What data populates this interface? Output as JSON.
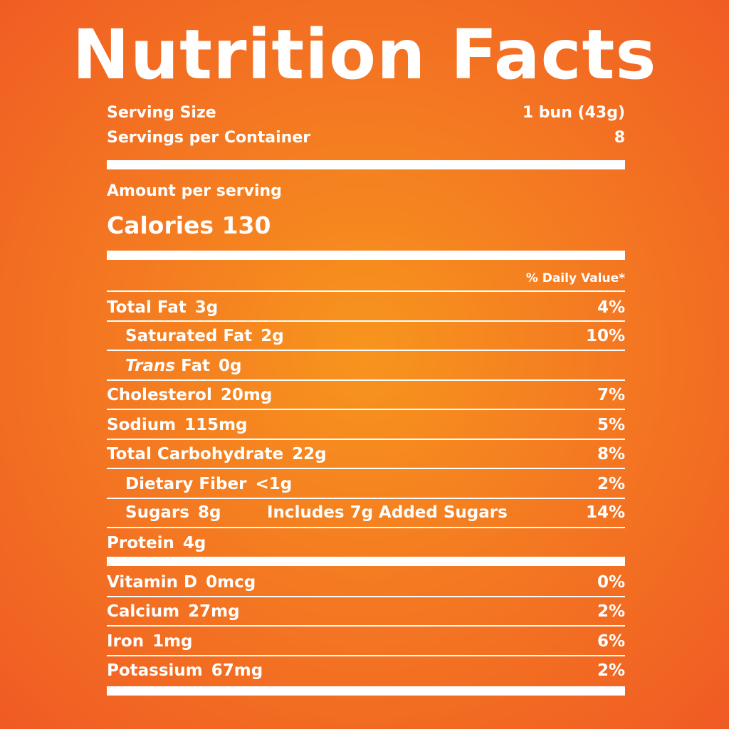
{
  "title": "Nutrition Facts",
  "serving": {
    "size_label": "Serving Size",
    "size_value": "1 bun (43g)",
    "per_container_label": "Servings per Container",
    "per_container_value": "8"
  },
  "amount_label": "Amount per serving",
  "calories": {
    "label": "Calories",
    "value": "130"
  },
  "daily_value_header": "% Daily Value*",
  "nutrients": {
    "total_fat": {
      "label": "Total Fat",
      "amount": "3g",
      "dv": "4%"
    },
    "saturated_fat": {
      "label": "Saturated Fat",
      "amount": "2g",
      "dv": "10%"
    },
    "trans_fat": {
      "label_italic": "Trans",
      "label": "Fat",
      "amount": "0g"
    },
    "cholesterol": {
      "label": "Cholesterol",
      "amount": "20mg",
      "dv": "7%"
    },
    "sodium": {
      "label": "Sodium",
      "amount": "115mg",
      "dv": "5%"
    },
    "total_carbohydrate": {
      "label": "Total Carbohydrate",
      "amount": "22g",
      "dv": "8%"
    },
    "dietary_fiber": {
      "label": "Dietary Fiber",
      "amount": "<1g",
      "dv": "2%"
    },
    "sugars": {
      "label": "Sugars",
      "amount": "8g",
      "added": "Includes 7g Added Sugars",
      "dv": "14%"
    },
    "protein": {
      "label": "Protein",
      "amount": "4g"
    }
  },
  "vitamins": {
    "vitamin_d": {
      "label": "Vitamin D",
      "amount": "0mcg",
      "dv": "0%"
    },
    "calcium": {
      "label": "Calcium",
      "amount": "27mg",
      "dv": "2%"
    },
    "iron": {
      "label": "Iron",
      "amount": "1mg",
      "dv": "6%"
    },
    "potassium": {
      "label": "Potassium",
      "amount": "67mg",
      "dv": "2%"
    }
  }
}
